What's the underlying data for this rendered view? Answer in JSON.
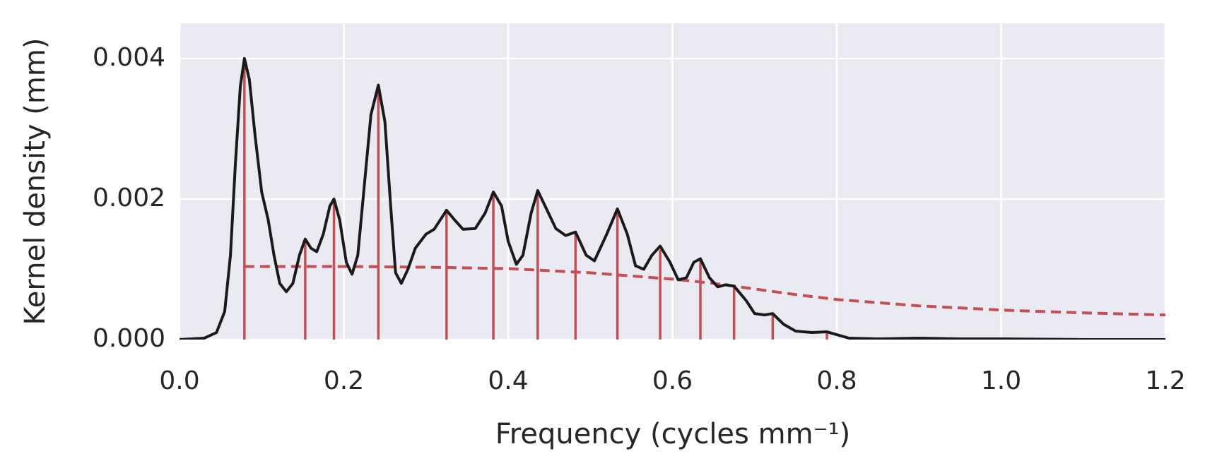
{
  "chart_data": {
    "type": "line",
    "xlabel": "Frequency (cycles mm⁻¹)",
    "ylabel": "Kernel density (mm)",
    "xlim": [
      0,
      1.2
    ],
    "ylim": [
      0,
      0.0045
    ],
    "xticks": [
      {
        "value": 0,
        "label": "0.0"
      },
      0.2,
      0.4,
      0.6,
      0.8,
      {
        "value": 1,
        "label": "1.0"
      },
      1.2
    ],
    "yticks": [
      {
        "value": 0,
        "label": "0.000"
      },
      0.002,
      0.004
    ],
    "grid": true,
    "background": "#eaeaf2",
    "series": [
      {
        "style": "stem",
        "color": "#c44e52",
        "x": [
          0.079,
          0.153,
          0.188,
          0.242,
          0.325,
          0.382,
          0.436,
          0.482,
          0.533,
          0.585,
          0.634,
          0.675,
          0.722,
          0.788
        ],
        "values": [
          0.00397,
          0.00141,
          0.00196,
          0.00361,
          0.00183,
          0.00209,
          0.00211,
          0.00152,
          0.00185,
          0.00128,
          0.00113,
          0.00076,
          0.00035,
          0.00011
        ]
      },
      {
        "style": "dashed",
        "color": "#c44e52",
        "x": [
          0.079,
          0.2,
          0.3,
          0.4,
          0.5,
          0.6,
          0.65,
          0.7,
          0.75,
          0.8,
          0.9,
          1.0,
          1.1,
          1.2
        ],
        "values": [
          0.00104,
          0.00104,
          0.00103,
          0.00101,
          0.00095,
          0.00086,
          0.0008,
          0.00072,
          0.00064,
          0.00057,
          0.00048,
          0.00042,
          0.00038,
          0.00035
        ]
      },
      {
        "style": "solid",
        "color": "#1a1a1a",
        "x": [
          0,
          0.03,
          0.045,
          0.055,
          0.062,
          0.068,
          0.074,
          0.079,
          0.085,
          0.092,
          0.1,
          0.108,
          0.115,
          0.122,
          0.13,
          0.138,
          0.146,
          0.153,
          0.16,
          0.167,
          0.175,
          0.183,
          0.188,
          0.195,
          0.203,
          0.21,
          0.217,
          0.225,
          0.233,
          0.242,
          0.25,
          0.257,
          0.263,
          0.27,
          0.278,
          0.287,
          0.3,
          0.31,
          0.325,
          0.335,
          0.345,
          0.36,
          0.372,
          0.382,
          0.392,
          0.4,
          0.41,
          0.418,
          0.428,
          0.436,
          0.445,
          0.458,
          0.47,
          0.482,
          0.495,
          0.505,
          0.52,
          0.533,
          0.545,
          0.555,
          0.565,
          0.575,
          0.585,
          0.597,
          0.607,
          0.617,
          0.626,
          0.634,
          0.645,
          0.655,
          0.665,
          0.675,
          0.69,
          0.7,
          0.712,
          0.722,
          0.735,
          0.75,
          0.77,
          0.788,
          0.8,
          0.815,
          0.85,
          0.9,
          0.95,
          1.0,
          1.1,
          1.2
        ],
        "values": [
          0,
          2e-05,
          0.0001,
          0.0004,
          0.0012,
          0.0025,
          0.0036,
          0.004,
          0.0037,
          0.0029,
          0.0021,
          0.0017,
          0.0012,
          0.0008,
          0.00068,
          0.0008,
          0.0012,
          0.00143,
          0.0013,
          0.00125,
          0.0015,
          0.0019,
          0.002,
          0.0017,
          0.0011,
          0.00093,
          0.0012,
          0.0022,
          0.0032,
          0.00362,
          0.0031,
          0.0019,
          0.00095,
          0.0008,
          0.001,
          0.0013,
          0.0015,
          0.00157,
          0.00184,
          0.0017,
          0.00157,
          0.00158,
          0.0018,
          0.0021,
          0.0019,
          0.0014,
          0.00107,
          0.0012,
          0.0018,
          0.00212,
          0.0019,
          0.00158,
          0.00148,
          0.00153,
          0.0012,
          0.00112,
          0.0015,
          0.00186,
          0.0015,
          0.00105,
          0.001,
          0.0012,
          0.00133,
          0.0011,
          0.00085,
          0.00088,
          0.0011,
          0.00115,
          0.00088,
          0.00075,
          0.00078,
          0.00076,
          0.00055,
          0.00037,
          0.00035,
          0.00037,
          0.00022,
          0.00012,
          0.0001,
          0.00011,
          7e-05,
          2e-05,
          1e-05,
          2e-05,
          1e-05,
          1e-05,
          0,
          0
        ]
      }
    ]
  }
}
